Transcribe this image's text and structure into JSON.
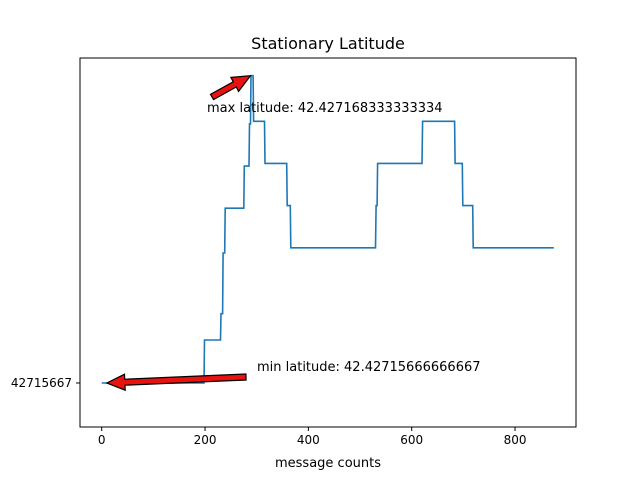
{
  "chart_data": {
    "type": "line",
    "title": "Stationary Latitude",
    "xlabel": "message counts",
    "ylabel": "",
    "xlim": [
      -42,
      918
    ],
    "ylim": [
      42.427155,
      42.427169
    ],
    "x_ticks": [
      0,
      200,
      400,
      600,
      800
    ],
    "x_tick_labels": [
      "0",
      "200",
      "400",
      "600",
      "800"
    ],
    "y_ticks": [
      42.42715667
    ],
    "y_tick_labels": [
      "42715667"
    ],
    "grid": false,
    "line_color": "#1f77b4",
    "arrow_color": "#e8120e",
    "series": [
      {
        "x": [
          0,
          198,
          199,
          230,
          231,
          234,
          235,
          238,
          239,
          275,
          276,
          285,
          286,
          288,
          289,
          293,
          294,
          315,
          316,
          358,
          359,
          365,
          366,
          370,
          371,
          530,
          531,
          533,
          534,
          620,
          621,
          683,
          684,
          698,
          699,
          718,
          719,
          875
        ],
        "y": [
          42.42715667,
          42.42715667,
          42.4271583,
          42.4271583,
          42.4271593,
          42.4271593,
          42.4271616,
          42.4271616,
          42.4271633,
          42.4271633,
          42.4271649,
          42.4271649,
          42.4271665,
          42.4271665,
          42.42716833,
          42.42716833,
          42.4271666,
          42.4271666,
          42.427165,
          42.427165,
          42.4271634,
          42.4271634,
          42.4271618,
          42.4271618,
          42.4271618,
          42.4271618,
          42.4271634,
          42.4271634,
          42.427165,
          42.427165,
          42.4271666,
          42.4271666,
          42.427165,
          42.427165,
          42.4271634,
          42.4271634,
          42.4271618,
          42.4271618
        ]
      }
    ],
    "annotations": [
      {
        "text": "max latitude: 42.427168333333334",
        "point": [
          288,
          42.42716833
        ]
      },
      {
        "text": "min latitude: 42.42715666666667",
        "point": [
          10,
          42.42715667
        ]
      }
    ]
  }
}
